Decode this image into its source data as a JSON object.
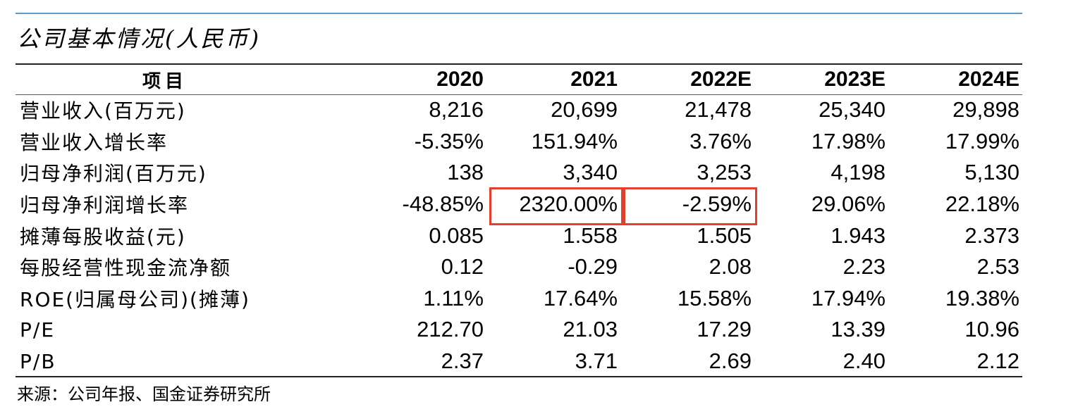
{
  "title": "公司基本情况(人民币)",
  "table": {
    "header": [
      "项目",
      "2020",
      "2021",
      "2022E",
      "2023E",
      "2024E"
    ],
    "rows": [
      [
        "营业收入(百万元)",
        "8,216",
        "20,699",
        "21,478",
        "25,340",
        "29,898"
      ],
      [
        "营业收入增长率",
        "-5.35%",
        "151.94%",
        "3.76%",
        "17.98%",
        "17.99%"
      ],
      [
        "归母净利润(百万元)",
        "138",
        "3,340",
        "3,253",
        "4,198",
        "5,130"
      ],
      [
        "归母净利润增长率",
        "-48.85%",
        "2320.00%",
        "-2.59%",
        "29.06%",
        "22.18%"
      ],
      [
        "摊薄每股收益(元)",
        "0.085",
        "1.558",
        "1.505",
        "1.943",
        "2.373"
      ],
      [
        "每股经营性现金流净额",
        "0.12",
        "-0.29",
        "2.08",
        "2.23",
        "2.53"
      ],
      [
        "ROE(归属母公司)(摊薄)",
        "1.11%",
        "17.64%",
        "15.58%",
        "17.94%",
        "19.38%"
      ],
      [
        "P/E",
        "212.70",
        "21.03",
        "17.29",
        "13.39",
        "10.96"
      ],
      [
        "P/B",
        "2.37",
        "3.71",
        "2.69",
        "2.40",
        "2.12"
      ]
    ]
  },
  "highlight_color": "#e0402c",
  "source": "来源：公司年报、国金证券研究所"
}
